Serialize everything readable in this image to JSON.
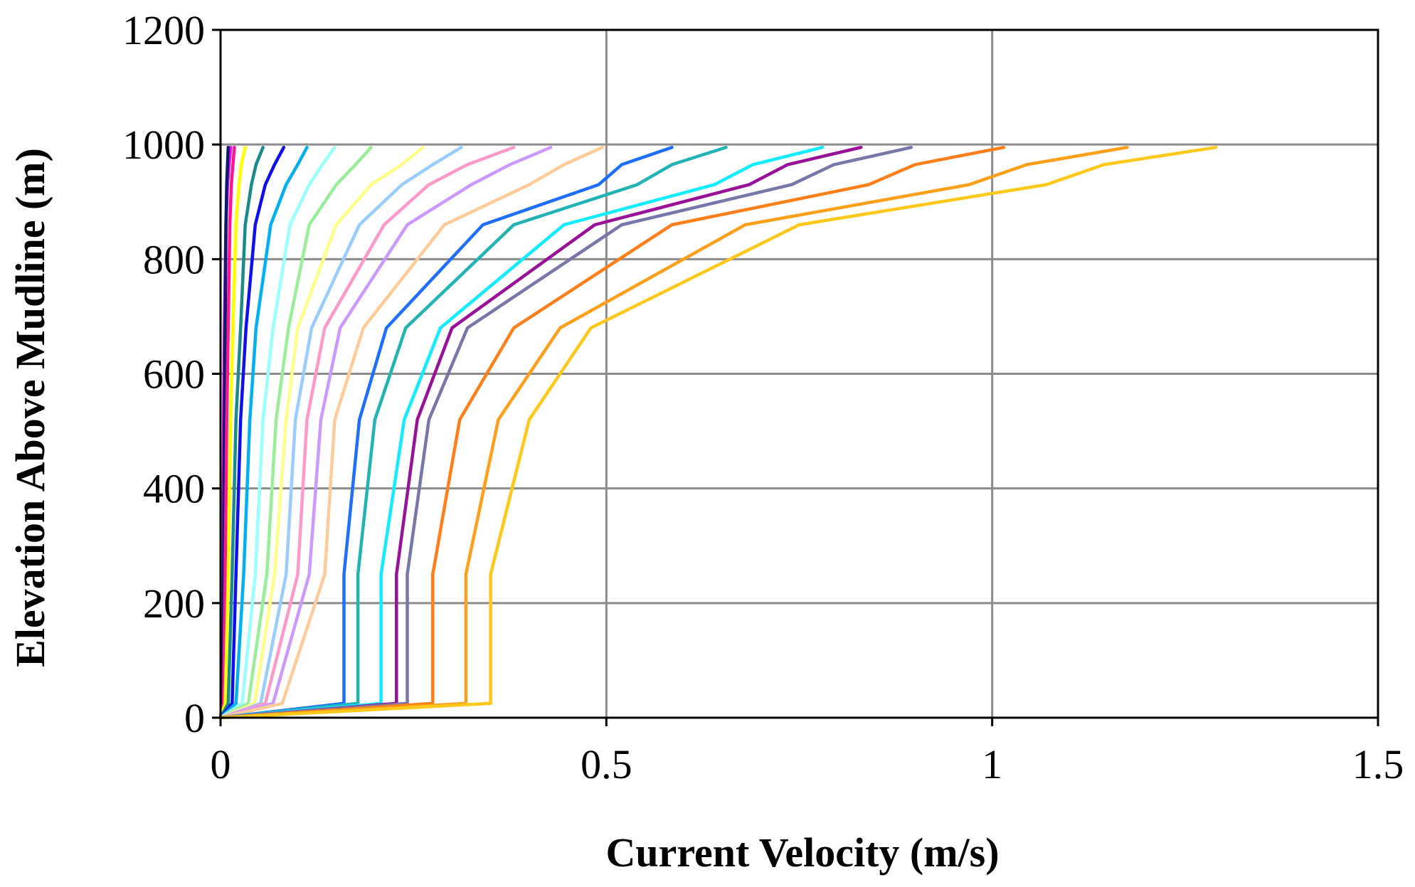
{
  "chart_data": {
    "type": "line",
    "title": "",
    "xlabel": "Current Velocity (m/s)",
    "ylabel": "Elevation Above Mudline (m)",
    "xlim": [
      0,
      1.5
    ],
    "ylim": [
      0,
      1200
    ],
    "x_ticks": [
      "0",
      "0.5",
      "1",
      "1.5"
    ],
    "y_ticks": [
      "0",
      "200",
      "400",
      "600",
      "800",
      "1000",
      "1200"
    ],
    "grid": true,
    "legend": "none",
    "y": [
      0,
      25,
      250,
      520,
      680,
      860,
      930,
      965,
      995
    ],
    "series": [
      {
        "color": "#ff00ff",
        "x": [
          0,
          0.002,
          0.003,
          0.004,
          0.005,
          0.007,
          0.009,
          0.011,
          0.013
        ]
      },
      {
        "color": "#0a1a6e",
        "x": [
          0,
          0.003,
          0.004,
          0.005,
          0.006,
          0.007,
          0.008,
          0.009,
          0.01
        ]
      },
      {
        "color": "#ff1493",
        "x": [
          0,
          0.004,
          0.006,
          0.008,
          0.01,
          0.012,
          0.014,
          0.016,
          0.018
        ]
      },
      {
        "color": "#ffff00",
        "x": [
          0,
          0.006,
          0.01,
          0.013,
          0.016,
          0.02,
          0.024,
          0.027,
          0.032
        ]
      },
      {
        "color": "#1a8a8a",
        "x": [
          0,
          0.01,
          0.015,
          0.02,
          0.026,
          0.032,
          0.04,
          0.046,
          0.055
        ]
      },
      {
        "color": "#1010ee",
        "x": [
          0,
          0.015,
          0.02,
          0.026,
          0.033,
          0.045,
          0.058,
          0.07,
          0.082
        ]
      },
      {
        "color": "#00b0f0",
        "x": [
          0,
          0.02,
          0.03,
          0.038,
          0.046,
          0.065,
          0.085,
          0.1,
          0.112
        ]
      },
      {
        "color": "#99ffff",
        "x": [
          0,
          0.028,
          0.045,
          0.055,
          0.068,
          0.09,
          0.115,
          0.132,
          0.148
        ]
      },
      {
        "color": "#99ee99",
        "x": [
          0,
          0.036,
          0.06,
          0.072,
          0.088,
          0.115,
          0.15,
          0.175,
          0.195
        ]
      },
      {
        "color": "#ffff88",
        "x": [
          0,
          0.044,
          0.07,
          0.085,
          0.1,
          0.15,
          0.195,
          0.235,
          0.262
        ]
      },
      {
        "color": "#99ccff",
        "x": [
          0,
          0.052,
          0.085,
          0.097,
          0.118,
          0.18,
          0.235,
          0.275,
          0.312
        ]
      },
      {
        "color": "#ff99cc",
        "x": [
          0,
          0.058,
          0.1,
          0.112,
          0.135,
          0.212,
          0.27,
          0.32,
          0.38
        ]
      },
      {
        "color": "#cc99ff",
        "x": [
          0,
          0.068,
          0.115,
          0.13,
          0.155,
          0.242,
          0.325,
          0.375,
          0.428
        ]
      },
      {
        "color": "#ffcc99",
        "x": [
          0,
          0.08,
          0.135,
          0.148,
          0.185,
          0.29,
          0.4,
          0.445,
          0.495
        ]
      },
      {
        "color": "#1f6fff",
        "x": [
          0,
          0.16,
          0.16,
          0.18,
          0.215,
          0.34,
          0.49,
          0.52,
          0.585
        ]
      },
      {
        "color": "#22b4b4",
        "x": [
          0,
          0.178,
          0.178,
          0.2,
          0.24,
          0.38,
          0.54,
          0.585,
          0.655
        ]
      },
      {
        "color": "#11ecff",
        "x": [
          0,
          0.208,
          0.208,
          0.238,
          0.285,
          0.445,
          0.64,
          0.69,
          0.78
        ]
      },
      {
        "color": "#991199",
        "x": [
          0,
          0.228,
          0.228,
          0.255,
          0.3,
          0.485,
          0.685,
          0.735,
          0.83
        ]
      },
      {
        "color": "#7777aa",
        "x": [
          0,
          0.242,
          0.242,
          0.27,
          0.32,
          0.52,
          0.74,
          0.795,
          0.895
        ]
      },
      {
        "color": "#ff7f1a",
        "x": [
          0,
          0.275,
          0.275,
          0.31,
          0.38,
          0.585,
          0.84,
          0.9,
          1.015
        ]
      },
      {
        "color": "#ff9f1a",
        "x": [
          0,
          0.318,
          0.318,
          0.36,
          0.44,
          0.68,
          0.97,
          1.045,
          1.175
        ]
      },
      {
        "color": "#ffc81a",
        "x": [
          0,
          0.35,
          0.35,
          0.4,
          0.48,
          0.75,
          1.07,
          1.145,
          1.29
        ]
      }
    ]
  }
}
